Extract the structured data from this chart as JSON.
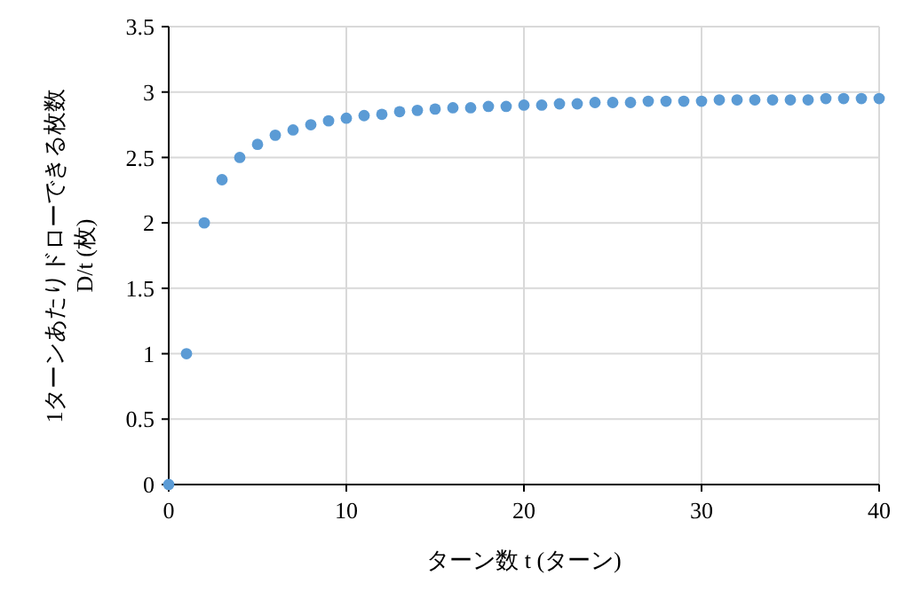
{
  "chart_data": {
    "type": "scatter",
    "xlabel": "ターン数 t (ターン)",
    "ylabel": "1ターンあたりドローできる枚数\nD/t (枚)",
    "x": [
      0,
      1,
      2,
      3,
      4,
      5,
      6,
      7,
      8,
      9,
      10,
      11,
      12,
      13,
      14,
      15,
      16,
      17,
      18,
      19,
      20,
      21,
      22,
      23,
      24,
      25,
      26,
      27,
      28,
      29,
      30,
      31,
      32,
      33,
      34,
      35,
      36,
      37,
      38,
      39,
      40
    ],
    "series": [
      {
        "color": "#5b9bd5",
        "values": [
          0,
          1,
          2,
          2.33,
          2.5,
          2.6,
          2.67,
          2.71,
          2.75,
          2.78,
          2.8,
          2.82,
          2.83,
          2.85,
          2.86,
          2.87,
          2.88,
          2.88,
          2.89,
          2.89,
          2.9,
          2.9,
          2.91,
          2.91,
          2.92,
          2.92,
          2.92,
          2.93,
          2.93,
          2.93,
          2.93,
          2.94,
          2.94,
          2.94,
          2.94,
          2.94,
          2.94,
          2.95,
          2.95,
          2.95,
          2.95
        ]
      }
    ],
    "xlim": [
      0,
      40
    ],
    "xticks": [
      0,
      10,
      20,
      30,
      40
    ],
    "ylim": [
      0,
      3.5
    ],
    "yticks": [
      0,
      0.5,
      1,
      1.5,
      2,
      2.5,
      3,
      3.5
    ],
    "grid": true,
    "marker": "circle"
  }
}
